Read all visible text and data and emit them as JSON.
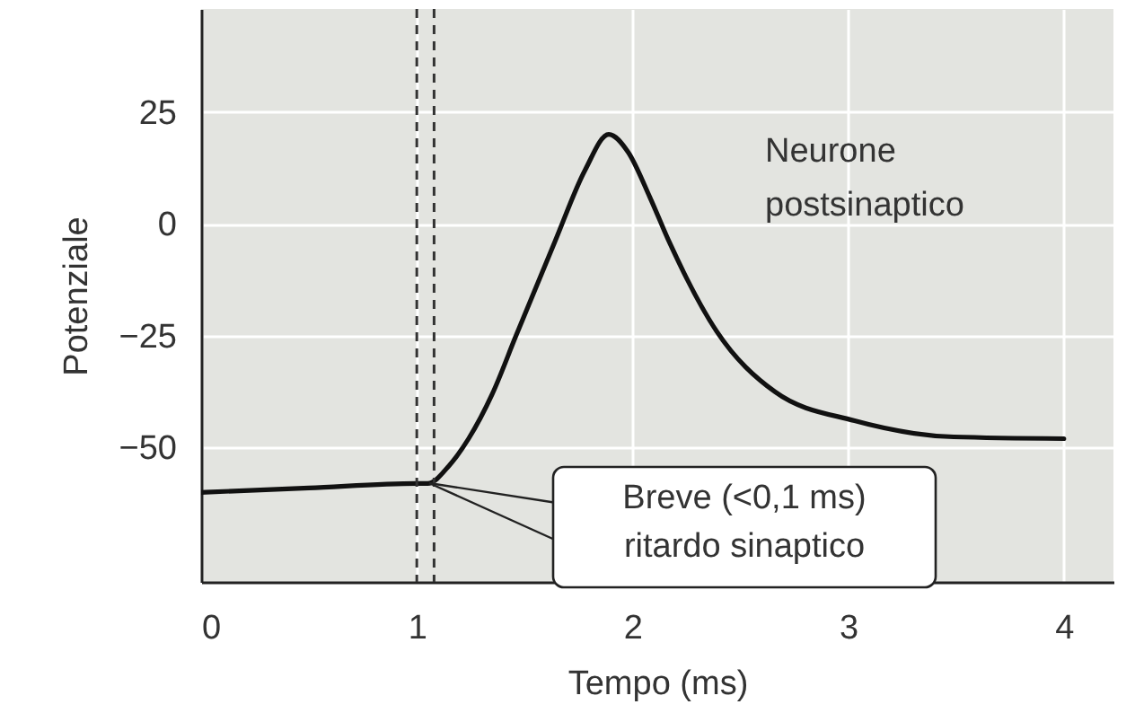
{
  "chart_data": {
    "type": "line",
    "xlabel": "Tempo (ms)",
    "ylabel": "Potenziale",
    "x": [
      0,
      0.5,
      1.0,
      1.05,
      1.15,
      1.24,
      1.35,
      1.46,
      1.64,
      1.78,
      1.89,
      1.98,
      2.08,
      2.17,
      2.39,
      2.66,
      3.03,
      3.49,
      4.0
    ],
    "series": [
      {
        "name": "Neurone postsinaptico",
        "color": "#111111",
        "values": [
          -60,
          -59,
          -58,
          -58,
          -54,
          -48,
          -38,
          -25,
          -4,
          12,
          20,
          16,
          6,
          -4,
          -24,
          -37.5,
          -44,
          -47.6,
          -48
        ]
      }
    ],
    "xlim": [
      0,
      4.23
    ],
    "ylim": [
      -80,
      48
    ],
    "xticks": [
      0,
      1,
      2,
      3,
      4
    ],
    "yticks": [
      -50,
      -25,
      0,
      25
    ],
    "grid": true,
    "line_style": "solid",
    "ref_lines": [
      {
        "axis": "x",
        "value": 1.0,
        "label": null,
        "color": "#333333",
        "line_style": "dashed"
      },
      {
        "axis": "x",
        "value": 1.08,
        "label": null,
        "color": "#333333",
        "line_style": "dashed"
      }
    ],
    "annotations": [
      "Breve (<0,1 ms)\nritardo sinaptico"
    ]
  }
}
